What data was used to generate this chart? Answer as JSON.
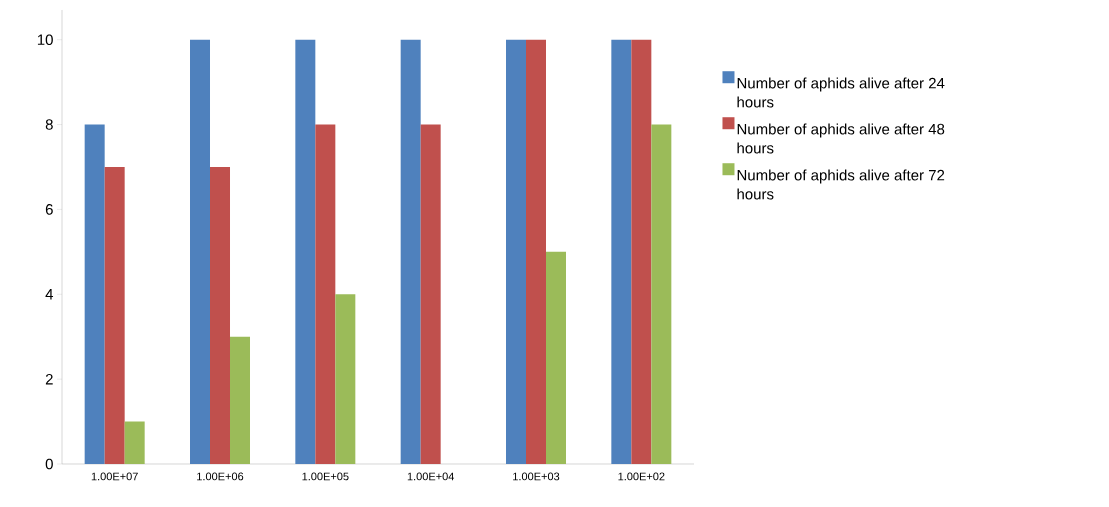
{
  "chart_data": {
    "type": "bar",
    "categories": [
      "1.00E+07",
      "1.00E+06",
      "1.00E+05",
      "1.00E+04",
      "1.00E+03",
      "1.00E+02"
    ],
    "series": [
      {
        "name": "Number of aphids alive after 24 hours",
        "color": "#4f81bd",
        "values": [
          8,
          10,
          10,
          10,
          10,
          10
        ]
      },
      {
        "name": "Number of aphids alive after 48 hours",
        "color": "#c0504d",
        "values": [
          7,
          7,
          8,
          8,
          10,
          10
        ]
      },
      {
        "name": "Number of aphids alive after 72 hours",
        "color": "#9bbb59",
        "values": [
          1,
          3,
          4,
          0,
          5,
          8
        ]
      }
    ],
    "ylim": [
      0,
      10.7
    ],
    "yticks": [
      0,
      2,
      4,
      6,
      8,
      10
    ],
    "grid": false,
    "legend": "right"
  }
}
